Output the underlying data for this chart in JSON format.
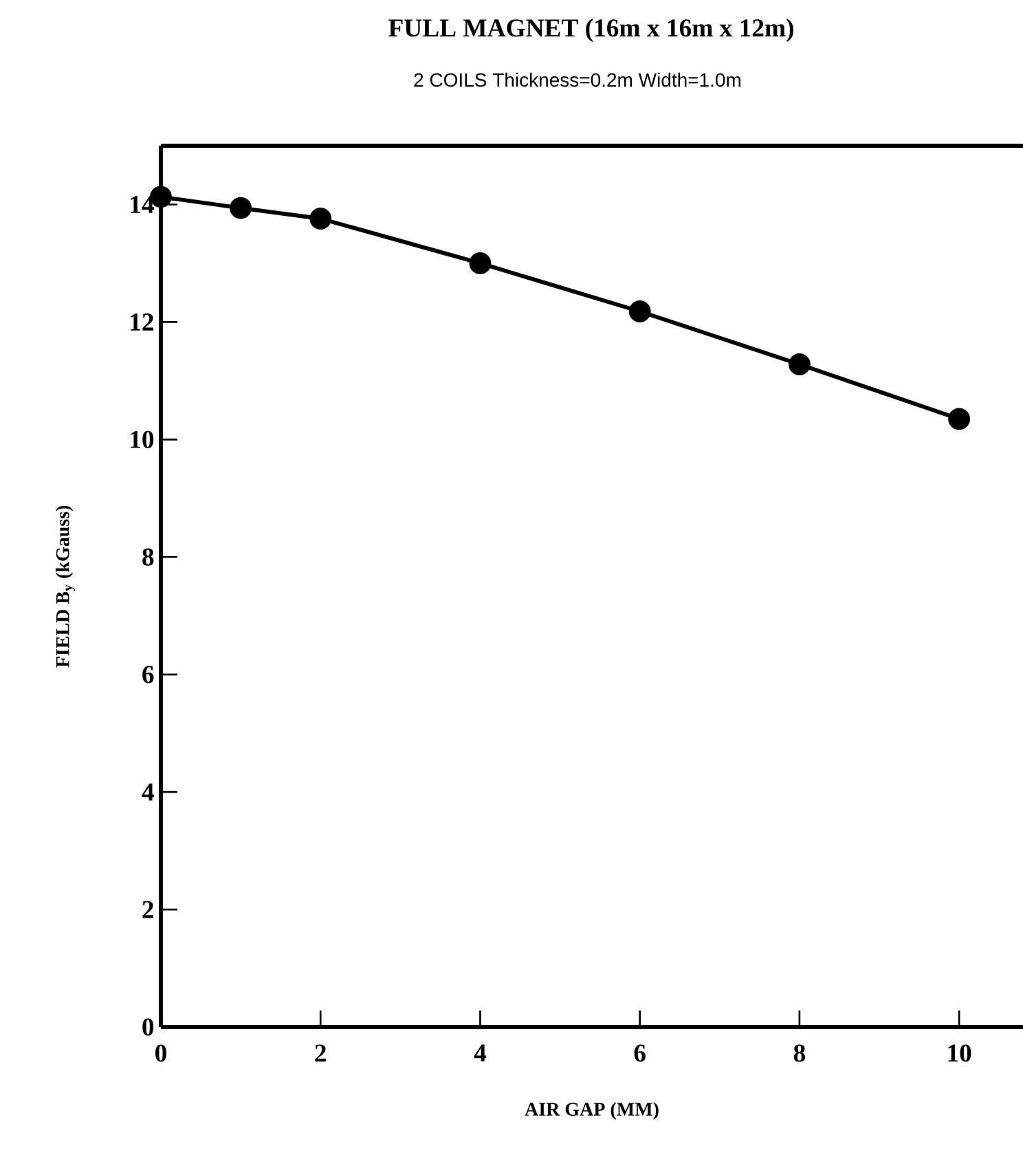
{
  "chart_data": {
    "type": "line",
    "title": "FULL   MAGNET  (16m x 16m x 12m)",
    "subtitle": "2 COILS  Thickness=0.2m   Width=1.0m",
    "xlabel": "AIR  GAP  (MM)",
    "ylabel": "FIELD  B$_{y}$  (kGauss)",
    "x": [
      0,
      1,
      2,
      4,
      6,
      8,
      10
    ],
    "series": [
      {
        "color": "#000000",
        "values": [
          14.13,
          13.94,
          13.76,
          13.0,
          12.18,
          11.28,
          10.35
        ]
      }
    ],
    "xlim": [
      0,
      10.8
    ],
    "ylim": [
      0,
      15
    ],
    "xticks": [
      0,
      2,
      4,
      6,
      8,
      10
    ],
    "yticks": [
      0,
      2,
      4,
      6,
      8,
      10,
      12,
      14
    ],
    "grid": false,
    "marker": "circle",
    "line_style": "solid"
  }
}
